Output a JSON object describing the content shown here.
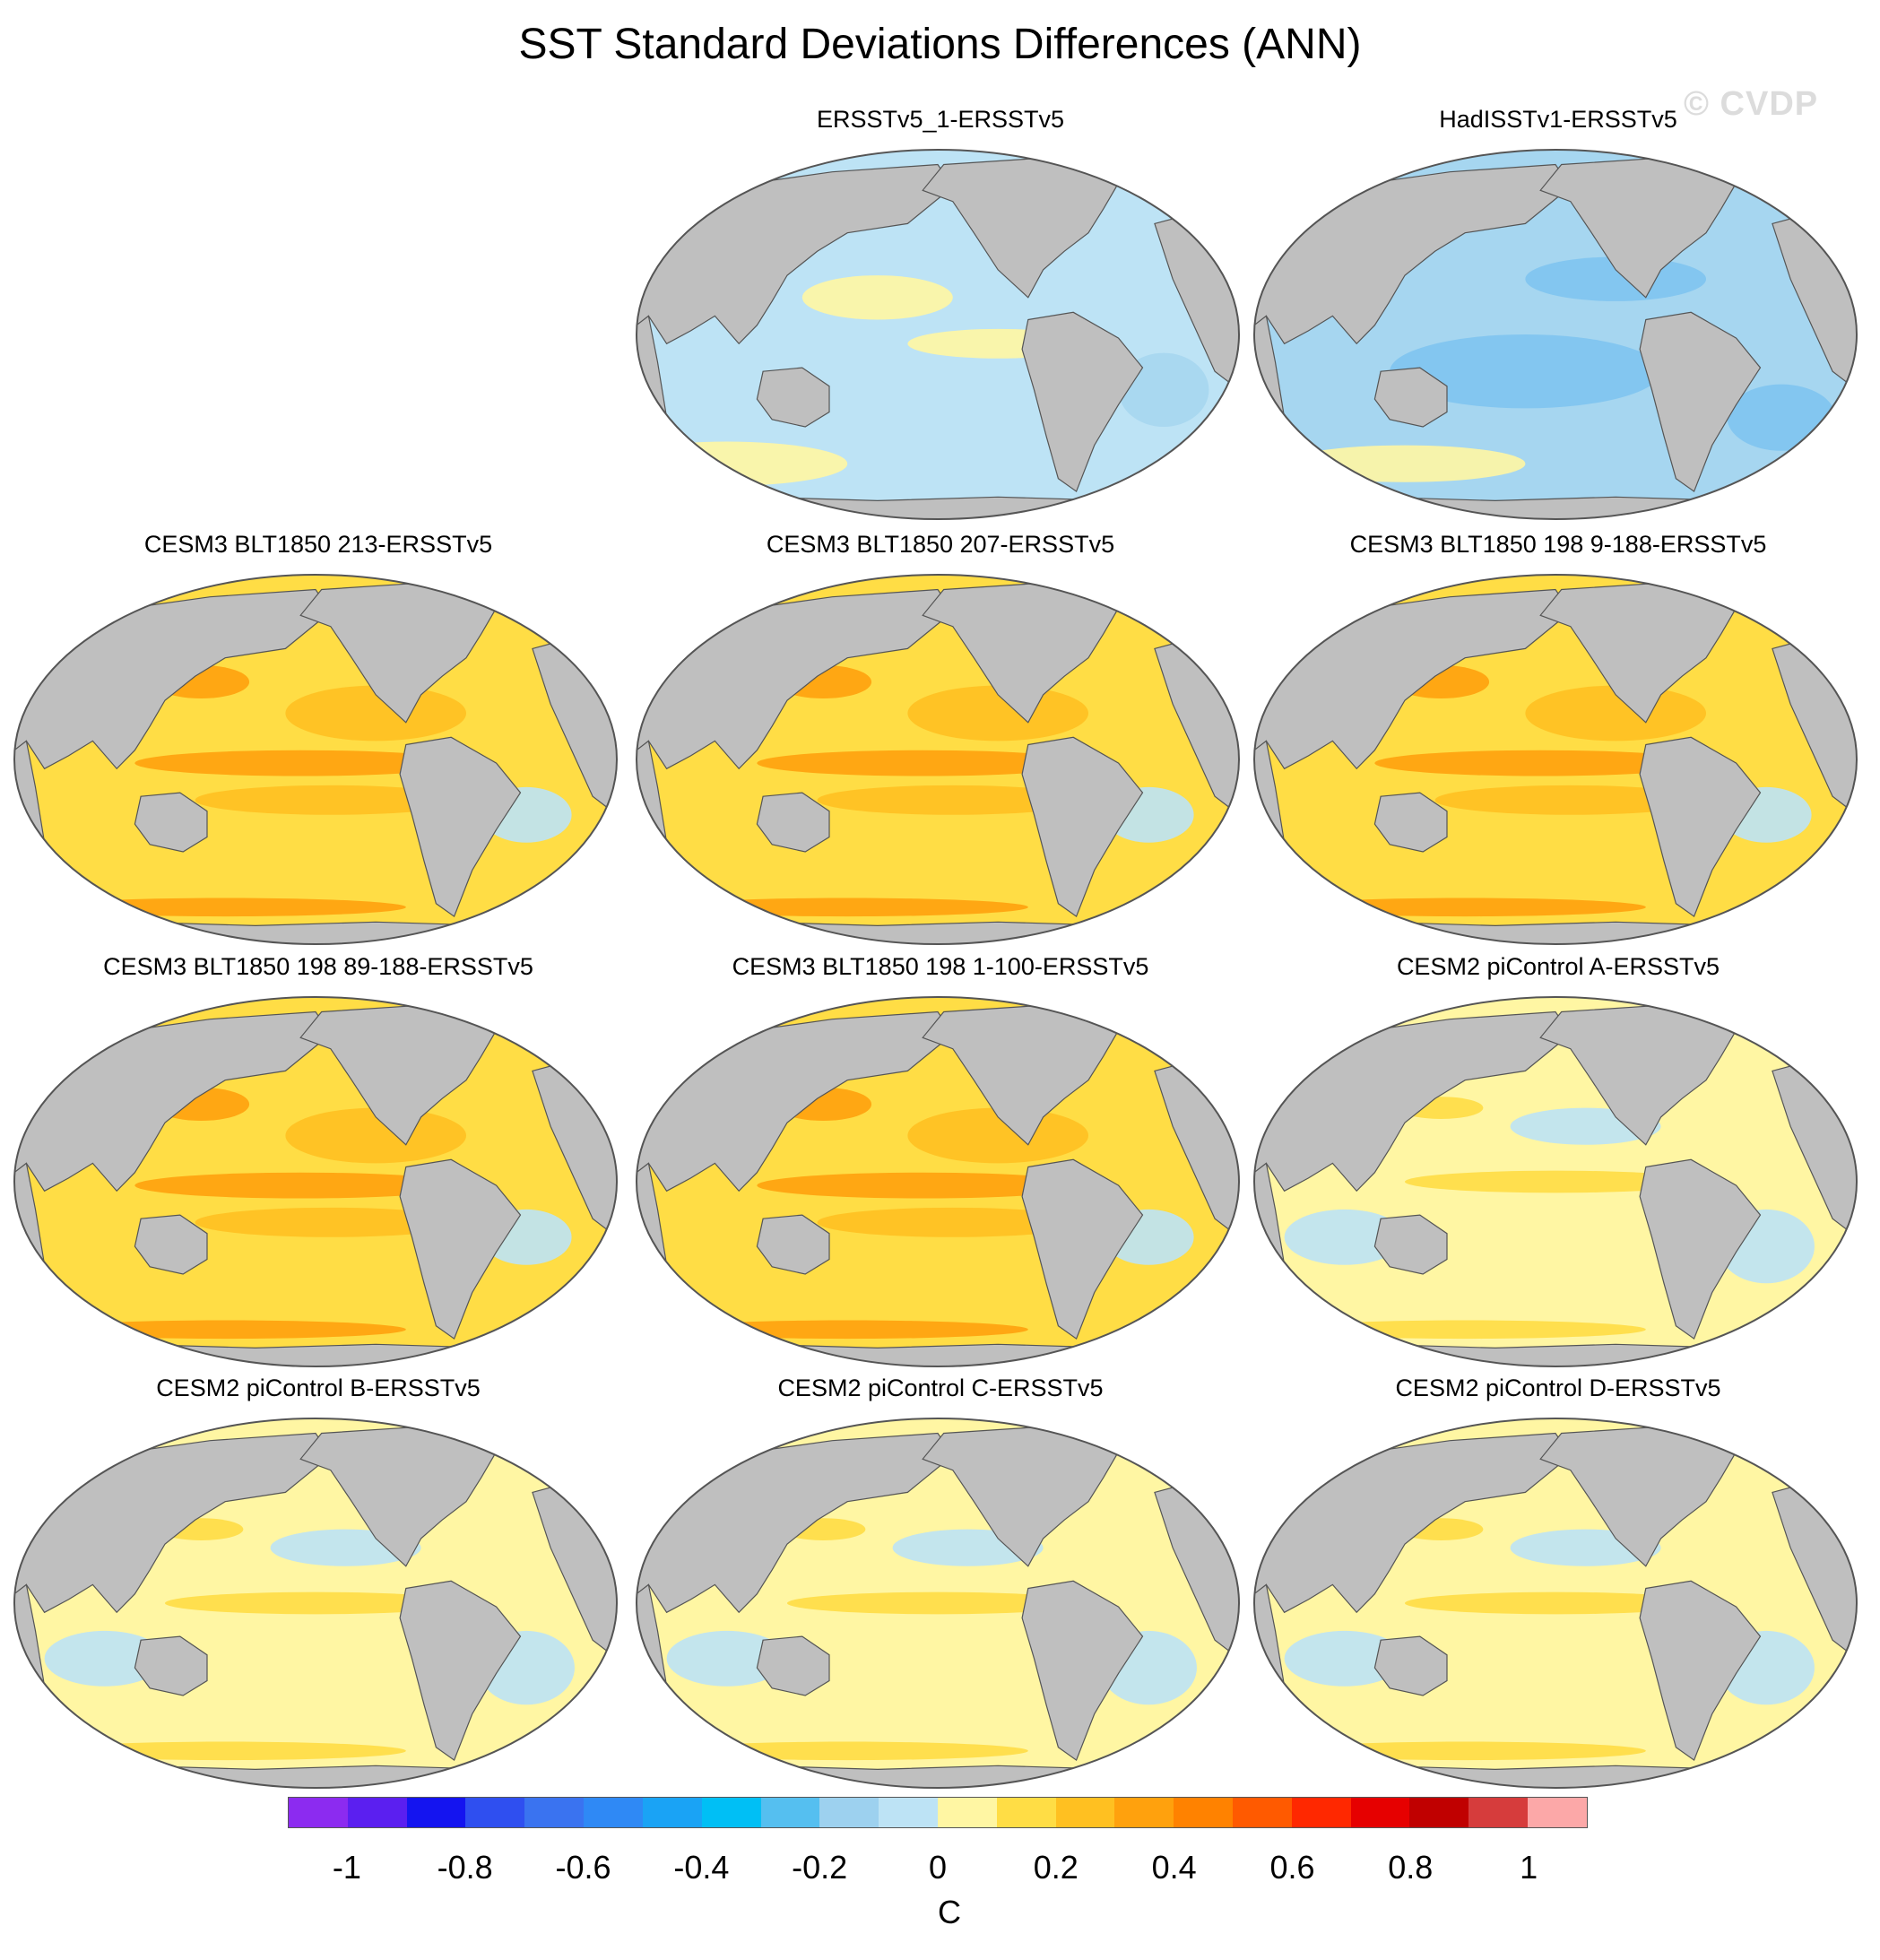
{
  "title": "SST Standard Deviations Differences (ANN)",
  "watermark": "© CVDP",
  "map": {
    "projection": "Robinson",
    "land_color": "#bfbfbf",
    "border_color": "#555555"
  },
  "panels": [
    {
      "title": "ERSSTv5_1-ERSSTv5",
      "pattern": "obs-small",
      "tint": [
        "#bde3f5",
        "#a6d6f0",
        "#fff6a3"
      ]
    },
    {
      "title": "HadISSTv1-ERSSTv5",
      "pattern": "obs-cold",
      "tint": [
        "#a6d6f0",
        "#7fc4ef",
        "#fff6a3"
      ]
    },
    {
      "title": "CESM3 BLT1850 213-ERSSTv5",
      "pattern": "warm",
      "tint": [
        "#ffdd45",
        "#ffc021",
        "#ffa10d"
      ]
    },
    {
      "title": "CESM3 BLT1850 207-ERSSTv5",
      "pattern": "warm",
      "tint": [
        "#ffdd45",
        "#ffc021",
        "#ffa10d"
      ]
    },
    {
      "title": "CESM3 BLT1850 198 9-188-ERSSTv5",
      "pattern": "warm",
      "tint": [
        "#ffdd45",
        "#ffc021",
        "#ffa10d"
      ]
    },
    {
      "title": "CESM3 BLT1850 198 89-188-ERSSTv5",
      "pattern": "warm",
      "tint": [
        "#ffdd45",
        "#ffc021",
        "#ffa10d"
      ]
    },
    {
      "title": "CESM3 BLT1850 198 1-100-ERSSTv5",
      "pattern": "warm",
      "tint": [
        "#ffdd45",
        "#ffc021",
        "#ffa10d"
      ]
    },
    {
      "title": "CESM2 piControl A-ERSSTv5",
      "pattern": "mixed",
      "tint": [
        "#fff6a3",
        "#bde3f5",
        "#ffdd45"
      ]
    },
    {
      "title": "CESM2 piControl B-ERSSTv5",
      "pattern": "mixed",
      "tint": [
        "#fff6a3",
        "#bde3f5",
        "#ffdd45"
      ]
    },
    {
      "title": "CESM2 piControl C-ERSSTv5",
      "pattern": "mixed",
      "tint": [
        "#fff6a3",
        "#bde3f5",
        "#ffdd45"
      ]
    },
    {
      "title": "CESM2 piControl D-ERSSTv5",
      "pattern": "mixed",
      "tint": [
        "#fff6a3",
        "#bde3f5",
        "#ffdd45"
      ]
    }
  ],
  "colorbar": {
    "unit": "C",
    "range": [
      -1.1,
      1.1
    ],
    "colors": [
      "#8c2bf0",
      "#5b1ff0",
      "#1414f0",
      "#2f4ff0",
      "#3a73f0",
      "#2f89f5",
      "#1aa3f5",
      "#00bff5",
      "#55bff0",
      "#9dd1ef",
      "#bde3f5",
      "#fff6a3",
      "#ffdd45",
      "#ffc021",
      "#ffa10d",
      "#ff8200",
      "#ff5a00",
      "#ff2800",
      "#e60000",
      "#c00000",
      "#d63c3c",
      "#fca8a8"
    ],
    "ticks": [
      "-1",
      "-0.8",
      "-0.6",
      "-0.4",
      "-0.2",
      "0",
      "0.2",
      "0.4",
      "0.6",
      "0.8",
      "1"
    ],
    "tick_values": [
      -1,
      -0.8,
      -0.6,
      -0.4,
      -0.2,
      0,
      0.2,
      0.4,
      0.6,
      0.8,
      1
    ]
  }
}
